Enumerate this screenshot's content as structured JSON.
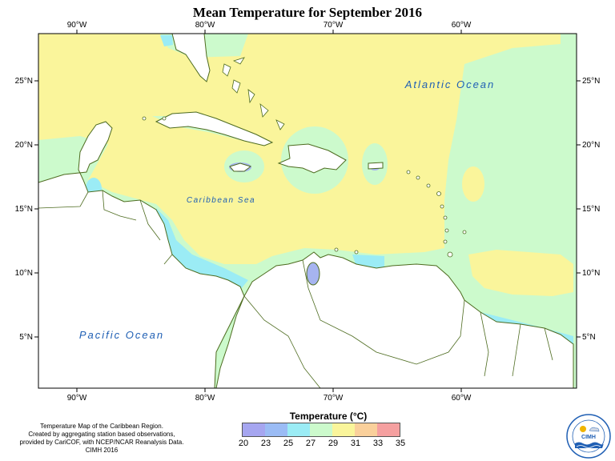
{
  "title": "Mean Temperature for September 2016",
  "map": {
    "longitude_labels": [
      "90°W",
      "80°W",
      "70°W",
      "60°W"
    ],
    "latitude_labels": [
      "5°N",
      "10°N",
      "15°N",
      "20°N",
      "25°N"
    ],
    "ocean_labels": [
      "Atlantic Ocean",
      "Caribbean Sea",
      "Pacific Ocean"
    ],
    "colors": {
      "yellow": "#faf59b",
      "light_green": "#ccfacc",
      "cyan": "#9be8f5",
      "blue": "#a6b4f0",
      "coast": "#4d6b1f",
      "land": "#ffffff"
    }
  },
  "legend": {
    "title": "Temperature (°C)",
    "colors": [
      "#a6a6f0",
      "#9bbcf5",
      "#9becf5",
      "#ccfacc",
      "#faf59b",
      "#fad09b",
      "#f5a0a0"
    ],
    "labels": [
      "20",
      "23",
      "25",
      "27",
      "29",
      "31",
      "33",
      "35"
    ]
  },
  "credit": {
    "lines": [
      "Temperature Map of the Caribbean Region.",
      "Created by aggregating station based observations,",
      "provided by CariCOF, with NCEP/NCAR Reanalysis Data.",
      "CIMH 2016"
    ]
  },
  "logo": {
    "text": "CIMH",
    "icon": "cimh-logo-icon"
  }
}
